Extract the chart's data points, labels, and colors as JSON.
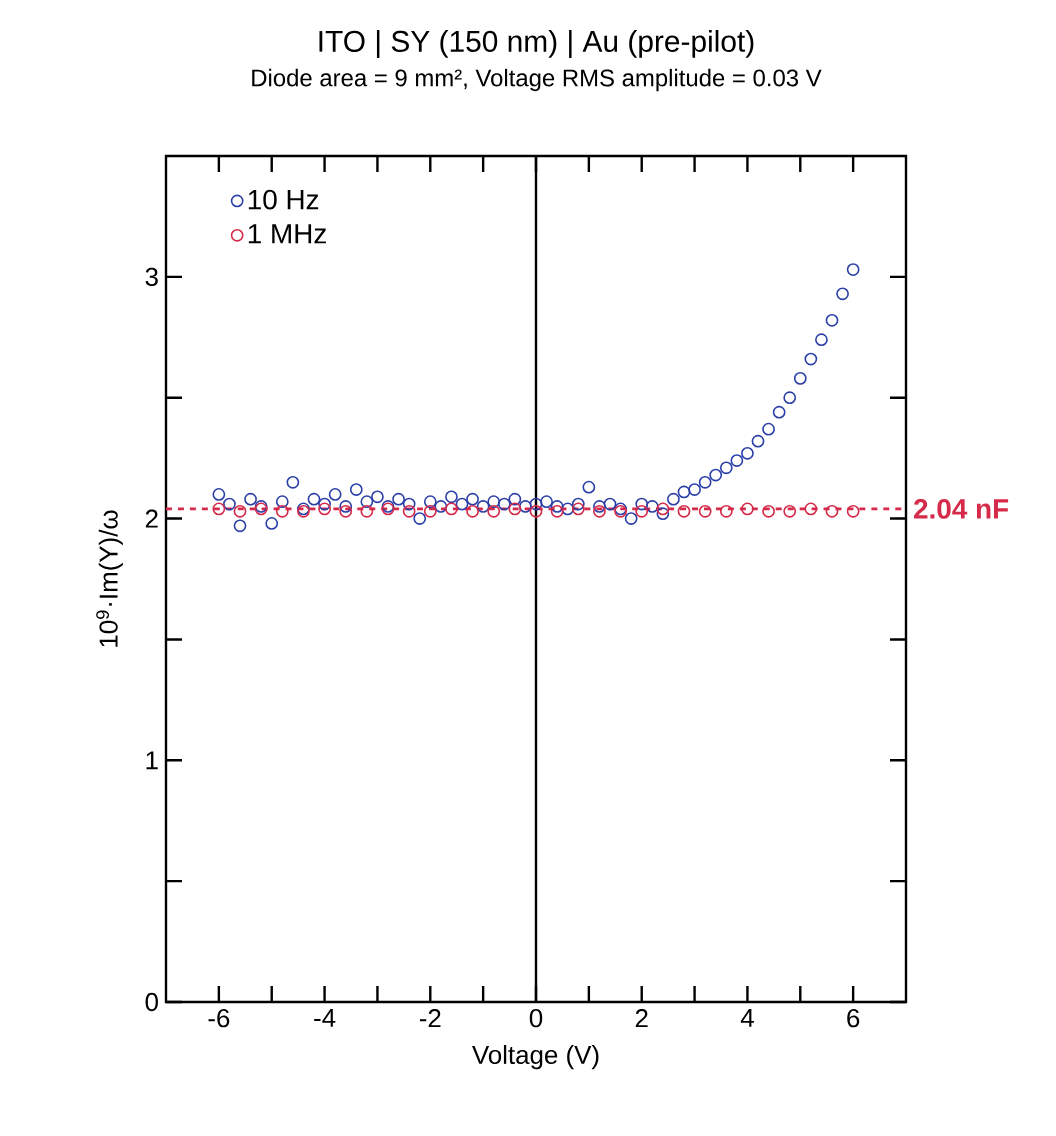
{
  "chart_data": {
    "type": "scatter",
    "title": "ITO | SY (150 nm) | Au (pre-pilot)",
    "subtitle": "Diode area = 9 mm², Voltage RMS amplitude = 0.03 V",
    "xlabel": "Voltage (V)",
    "ylabel": "10$^{9}$·Im(Y)/ω",
    "xlim": [
      -7,
      7
    ],
    "ylim": [
      0,
      3.5
    ],
    "xticks": [
      -6,
      {
        "value": -5,
        "label": null
      },
      -4,
      {
        "value": -3,
        "label": null
      },
      -2,
      {
        "value": -1,
        "label": null
      },
      0,
      {
        "value": 1,
        "label": null
      },
      2,
      {
        "value": 3,
        "label": null
      },
      4,
      {
        "value": 5,
        "label": null
      },
      6
    ],
    "yticks": [
      0,
      {
        "value": 0.5,
        "label": null
      },
      1,
      {
        "value": 1.5,
        "label": null
      },
      2,
      {
        "value": 2.5,
        "label": null
      },
      3
    ],
    "marker": "circle",
    "legend": "top left",
    "series": [
      {
        "name": "10 Hz",
        "color": "#2b3fa8",
        "x": [
          -6,
          -5.8,
          -5.6,
          -5.4,
          -5.2,
          -5,
          -4.8,
          -4.6,
          -4.4,
          -4.2,
          -4,
          -3.8,
          -3.6,
          -3.4,
          -3.2,
          -3,
          -2.8,
          -2.6,
          -2.4,
          -2.2,
          -2,
          -1.8,
          -1.6,
          -1.4,
          -1.2,
          -1,
          -0.8,
          -0.6,
          -0.4,
          -0.2,
          0,
          0.2,
          0.4,
          0.6,
          0.8,
          1,
          1.2,
          1.4,
          1.6,
          1.8,
          2,
          2.2,
          2.4,
          2.6,
          2.8,
          3,
          3.2,
          3.4,
          3.6,
          3.8,
          4,
          4.2,
          4.4,
          4.6,
          4.8,
          5,
          5.2,
          5.4,
          5.6,
          5.8,
          6
        ],
        "values": [
          2.1,
          2.06,
          1.97,
          2.08,
          2.05,
          1.98,
          2.07,
          2.15,
          2.04,
          2.08,
          2.06,
          2.1,
          2.05,
          2.12,
          2.07,
          2.09,
          2.05,
          2.08,
          2.06,
          2.0,
          2.07,
          2.05,
          2.09,
          2.06,
          2.08,
          2.05,
          2.07,
          2.06,
          2.08,
          2.05,
          2.06,
          2.07,
          2.05,
          2.04,
          2.06,
          2.13,
          2.05,
          2.06,
          2.04,
          2.0,
          2.06,
          2.05,
          2.02,
          2.08,
          2.11,
          2.12,
          2.15,
          2.18,
          2.21,
          2.24,
          2.27,
          2.32,
          2.37,
          2.44,
          2.5,
          2.58,
          2.66,
          2.74,
          2.82,
          2.93,
          3.03
        ]
      },
      {
        "name": "1 MHz",
        "color": "#d62a4a",
        "x": [
          -6,
          -5.6,
          -5.2,
          -4.8,
          -4.4,
          -4,
          -3.6,
          -3.2,
          -2.8,
          -2.4,
          -2,
          -1.6,
          -1.2,
          -0.8,
          -0.4,
          0,
          0.4,
          0.8,
          1.2,
          1.6,
          2,
          2.4,
          2.8,
          3.2,
          3.6,
          4,
          4.4,
          4.8,
          5.2,
          5.6,
          6
        ],
        "values": [
          2.04,
          2.03,
          2.04,
          2.03,
          2.03,
          2.04,
          2.03,
          2.03,
          2.04,
          2.03,
          2.03,
          2.04,
          2.03,
          2.03,
          2.04,
          2.03,
          2.03,
          2.04,
          2.03,
          2.03,
          2.03,
          2.04,
          2.03,
          2.03,
          2.03,
          2.04,
          2.03,
          2.03,
          2.04,
          2.03,
          2.03
        ]
      }
    ],
    "ref_lines": [
      {
        "axis": "x",
        "value": 0,
        "color": "#000000",
        "line_style": "solid"
      },
      {
        "axis": "y",
        "value": 2.04,
        "label": "2.04 nF",
        "color": "#d62a4a",
        "line_style": "dashed"
      }
    ]
  }
}
